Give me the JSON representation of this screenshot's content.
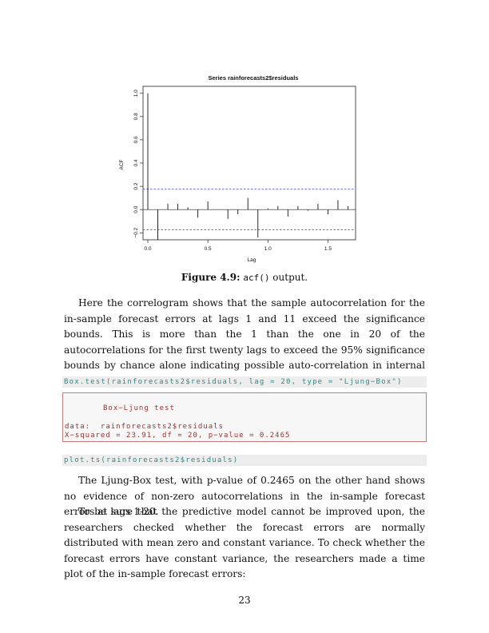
{
  "chart_data": {
    "type": "bar",
    "title": "Series  rainforecasts2$residuals",
    "xlabel": "Lag",
    "ylabel": "ACF",
    "xlim": [
      -0.04,
      1.73
    ],
    "ylim": [
      -0.26,
      1.06
    ],
    "x_ticks": [
      0.0,
      0.5,
      1.0,
      1.5
    ],
    "x_tick_labels": [
      "0.0",
      "0.5",
      "1.0",
      "1.5"
    ],
    "y_ticks": [
      -0.2,
      0.0,
      0.2,
      0.4,
      0.6,
      0.8,
      1.0
    ],
    "y_tick_labels": [
      "−0.2",
      "0.0",
      "0.2",
      "0.4",
      "0.6",
      "0.8",
      "1.0"
    ],
    "x": [
      0.0,
      0.0833,
      0.1667,
      0.25,
      0.3333,
      0.4167,
      0.5,
      0.5833,
      0.6667,
      0.75,
      0.8333,
      0.9167,
      1.0,
      1.0833,
      1.1667,
      1.25,
      1.3333,
      1.4167,
      1.5,
      1.5833,
      1.6667
    ],
    "values": [
      1.0,
      -0.26,
      0.05,
      0.05,
      0.02,
      -0.07,
      0.07,
      0.0,
      -0.08,
      -0.04,
      0.1,
      -0.24,
      0.01,
      0.03,
      -0.06,
      0.03,
      -0.01,
      0.05,
      -0.04,
      0.08,
      0.03
    ],
    "significance_bounds": [
      0.175,
      -0.175
    ],
    "grid": false
  },
  "caption": {
    "label": "Figure 4.9:",
    "code": "acf()",
    "text": "output."
  },
  "paragraph1": "Here the correlogram shows that the sample autocorrelation for the in-sample forecast errors at lags 1 and 11 exceed the significance bounds. This is more than the 1 than the one in 20 of the autocorrelations for the first twenty lags to exceed the 95% significance bounds by chance alone indicating possible auto-correlation in internal errors.",
  "code1": "Box.test(rainforecasts2$residuals, lag = 20, type = \"Ljung−Box\")",
  "output": {
    "line1": "Box−Ljung test",
    "line2": "data:  rainforecasts2$residuals",
    "line3": "X−squared = 23.91, df = 20, p−value = 0.2465"
  },
  "code2": "plot.ts(rainforecasts2$residuals)",
  "paragraph2": "The Ljung-Box test, with p-value of 0.2465 on the other hand shows no evidence of non-zero autocorrelations in the in-sample forecast errors at lags 1-20.",
  "paragraph3": "To be sure that the predictive model cannot be improved upon, the researchers checked whether the forecast errors are normally distributed with mean zero and constant variance. To check whether the forecast errors have constant variance, the researchers made a time plot of the in-sample forecast errors:",
  "page_number": "23"
}
